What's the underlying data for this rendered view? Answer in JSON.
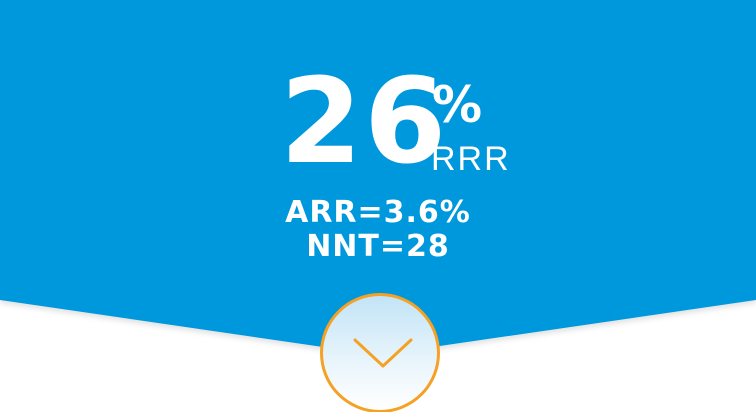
{
  "stat": {
    "value": "26",
    "percent_symbol": "%",
    "unit": "RRR"
  },
  "details": {
    "arr": "ARR=3.6%",
    "nnt": "NNT=28"
  },
  "colors": {
    "banner_blue": "#0498dc",
    "accent_orange": "#f4a125",
    "text_white": "#ffffff"
  },
  "icons": {
    "expand": "chevron-down-icon"
  }
}
